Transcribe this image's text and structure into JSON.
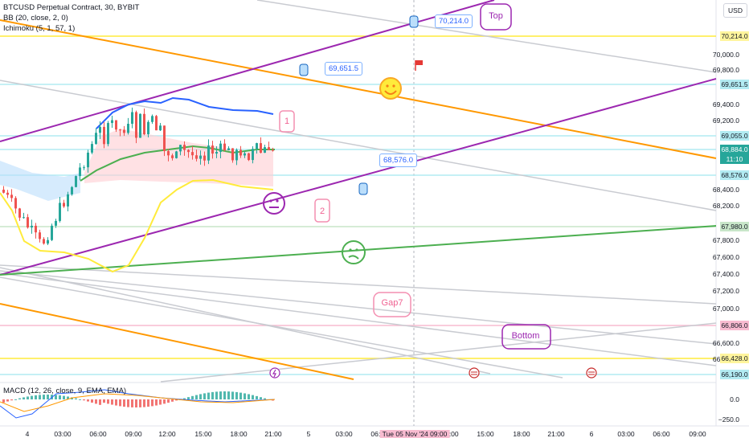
{
  "legend": {
    "title": "BTCUSD Perpetual Contract, 30, BYBIT",
    "bb": "BB (20, close, 2, 0)",
    "ichimoku": "Ichimoku (5, 1, 57, 1)",
    "macd": "MACD (12, 26, close, 9, EMA, EMA)"
  },
  "axis": {
    "currency": "USD",
    "price_ticks": [
      "70,000.0",
      "69,800.0",
      "69,400.0",
      "69,200.0",
      "68,400.0",
      "68,200.0",
      "67,800.0",
      "67,600.0",
      "67,400.0",
      "67,200.0",
      "67,000.0",
      "66,600.0",
      "66,400.0"
    ],
    "macd_ticks": [
      "0.0",
      "−250.0"
    ],
    "time_ticks": [
      "4",
      "03:00",
      "06:00",
      "09:00",
      "12:00",
      "15:00",
      "18:00",
      "21:00",
      "5",
      "03:00",
      "06:00",
      "12:00",
      "15:00",
      "18:00",
      "21:00",
      "6",
      "03:00",
      "06:00",
      "09:00"
    ],
    "cursor_time": "Tue 05 Nov '24  09:00"
  },
  "price_tags": [
    {
      "text": "70,214.0",
      "bg": "#fff59d",
      "fg": "#131722"
    },
    {
      "text": "69,651.5",
      "bg": "#b2ebf2",
      "fg": "#131722"
    },
    {
      "text": "69,055.0",
      "bg": "#b2ebf2",
      "fg": "#131722"
    },
    {
      "text": "68,884.0",
      "bg": "#26a69a",
      "fg": "#ffffff"
    },
    {
      "text": "11:10",
      "bg": "#26a69a",
      "fg": "#ffffff"
    },
    {
      "text": "68,576.0",
      "bg": "#b2ebf2",
      "fg": "#131722"
    },
    {
      "text": "67,980.0",
      "bg": "#c8e6c9",
      "fg": "#131722"
    },
    {
      "text": "66,806.0",
      "bg": "#f8bbd0",
      "fg": "#131722"
    },
    {
      "text": "66,428.0",
      "bg": "#fff59d",
      "fg": "#131722"
    },
    {
      "text": "66,190.0",
      "bg": "#b2ebf2",
      "fg": "#131722"
    }
  ],
  "callouts": {
    "c1": "70,214.0",
    "c2": "69,651.5",
    "c3": "68,576.0"
  },
  "notes": {
    "top": "Top",
    "bottom": "Bottom",
    "gap": "Gap7",
    "n1": "1",
    "n2": "2"
  },
  "colors": {
    "up": "#26a69a",
    "down": "#ef5350",
    "purple": "#9c27b0",
    "orange": "#ff9800",
    "green": "#4caf50",
    "yellow": "#ffeb3b",
    "bb_blue": "#2962ff",
    "grey": "#c9cbd1"
  }
}
